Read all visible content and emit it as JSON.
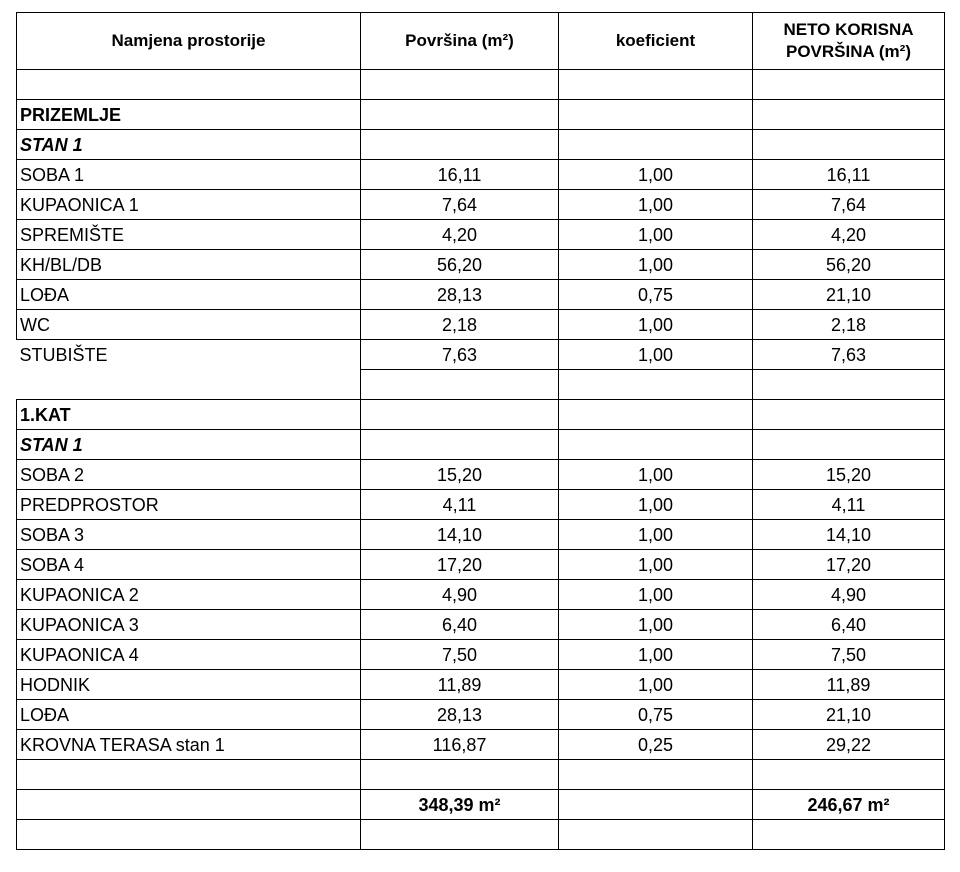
{
  "header": {
    "col_namjena": "Namjena prostorije",
    "col_povrsina": "Površina (m²)",
    "col_koeficient": "koeficient",
    "col_neto": "NETO KORISNA POVRŠINA (m²)"
  },
  "sections": [
    {
      "floor": "PRIZEMLJE",
      "unit": "STAN 1",
      "rows": [
        {
          "name": "SOBA 1",
          "area": "16,11",
          "coef": "1,00",
          "net": "16,11"
        },
        {
          "name": "KUPAONICA 1",
          "area": "7,64",
          "coef": "1,00",
          "net": "7,64"
        },
        {
          "name": "SPREMIŠTE",
          "area": "4,20",
          "coef": "1,00",
          "net": "4,20"
        },
        {
          "name": "KH/BL/DB",
          "area": "56,20",
          "coef": "1,00",
          "net": "56,20"
        },
        {
          "name": "LOĐA",
          "area": "28,13",
          "coef": "0,75",
          "net": "21,10"
        },
        {
          "name": "WC",
          "area": "2,18",
          "coef": "1,00",
          "net": "2,18"
        },
        {
          "name": "STUBIŠTE",
          "area": "7,63",
          "coef": "1,00",
          "net": "7,63"
        }
      ]
    },
    {
      "floor": "1.KAT",
      "unit": "STAN 1",
      "rows": [
        {
          "name": "SOBA 2",
          "area": "15,20",
          "coef": "1,00",
          "net": "15,20"
        },
        {
          "name": "PREDPROSTOR",
          "area": "4,11",
          "coef": "1,00",
          "net": "4,11"
        },
        {
          "name": "SOBA 3",
          "area": "14,10",
          "coef": "1,00",
          "net": "14,10"
        },
        {
          "name": "SOBA 4",
          "area": "17,20",
          "coef": "1,00",
          "net": "17,20"
        },
        {
          "name": "KUPAONICA 2",
          "area": "4,90",
          "coef": "1,00",
          "net": "4,90"
        },
        {
          "name": "KUPAONICA 3",
          "area": "6,40",
          "coef": "1,00",
          "net": "6,40"
        },
        {
          "name": "KUPAONICA 4",
          "area": "7,50",
          "coef": "1,00",
          "net": "7,50"
        },
        {
          "name": "HODNIK",
          "area": "11,89",
          "coef": "1,00",
          "net": "11,89"
        },
        {
          "name": "LOĐA",
          "area": "28,13",
          "coef": "0,75",
          "net": "21,10"
        },
        {
          "name": "KROVNA TERASA stan 1",
          "area": "116,87",
          "coef": "0,25",
          "net": "29,22"
        }
      ]
    }
  ],
  "totals": {
    "area": "348,39 m²",
    "net": "246,67 m²"
  }
}
